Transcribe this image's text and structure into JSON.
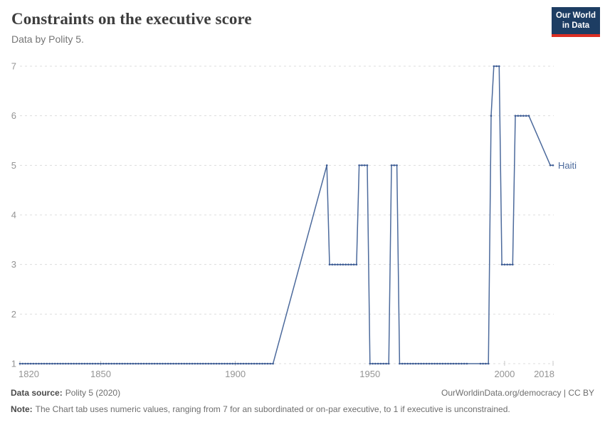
{
  "header": {
    "title": "Constraints on the executive score",
    "subtitle": "Data by Polity 5.",
    "logo": {
      "line1": "Our World",
      "line2": "in Data",
      "bg_color": "#1d3d63",
      "bar_color": "#dc2f23"
    }
  },
  "chart_data": {
    "type": "line",
    "title": "Constraints on the executive score",
    "subtitle": "Data by Polity 5.",
    "xlabel": "",
    "ylabel": "",
    "xlim": [
      1820,
      2018
    ],
    "ylim": [
      1,
      7
    ],
    "xticks": [
      1820,
      1850,
      1900,
      1950,
      2000,
      2018
    ],
    "yticks": [
      1,
      2,
      3,
      4,
      5,
      6,
      7
    ],
    "grid": true,
    "gridline_color": "#dddddd",
    "axis_label_color": "#949494",
    "legend_position": "end-of-line label",
    "series": [
      {
        "name": "Haiti",
        "color": "#4C6A9C",
        "marker_color": "#3E5C94",
        "runs_year_start_end_value": [
          [
            1820,
            1914,
            1
          ],
          [
            1934,
            1934,
            5
          ],
          [
            1935,
            1945,
            3
          ],
          [
            1946,
            1949,
            5
          ],
          [
            1950,
            1957,
            1
          ],
          [
            1958,
            1960,
            5
          ],
          [
            1961,
            1986,
            1
          ],
          [
            1991,
            1994,
            1
          ],
          [
            1995,
            1995,
            6
          ],
          [
            1996,
            1998,
            7
          ],
          [
            1999,
            2003,
            3
          ],
          [
            2004,
            2009,
            6
          ],
          [
            2017,
            2018,
            5
          ]
        ]
      }
    ]
  },
  "footer": {
    "source_label": "Data source:",
    "source_value": "Polity 5 (2020)",
    "link": "OurWorldinData.org/democracy | CC BY",
    "note_label": "Note:",
    "note_text": "The Chart tab uses numeric values, ranging from 7 for an subordinated or on-par executive, to 1 if executive is unconstrained."
  }
}
